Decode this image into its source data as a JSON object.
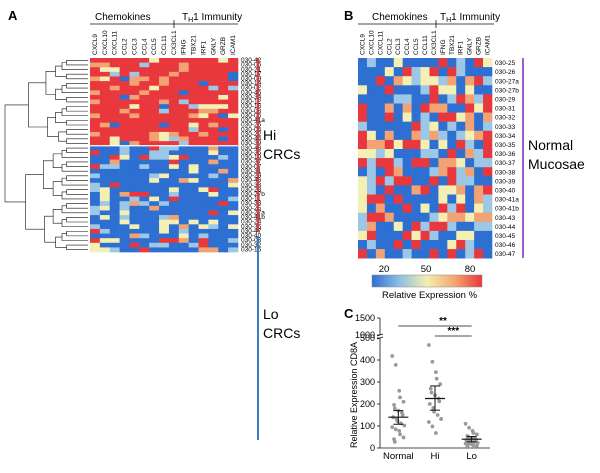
{
  "panel_a": {
    "label": "A",
    "chemokines_label": "Chemokines",
    "th1_label": "T",
    "th1_sub": "H",
    "th1_suffix": "1 Immunity",
    "genes": [
      "CXCL9",
      "CXCL10",
      "CXCL11",
      "CCL2",
      "CCL3",
      "CCL4",
      "CCL5",
      "CCL11",
      "CX3CL1",
      "IFNG",
      "TBX21",
      "IRF1",
      "GNLY",
      "GRZB",
      "ICAM1"
    ],
    "rows": [
      "030-42",
      "030-06",
      "030-21",
      "030-17",
      "030-09",
      "030-14",
      "030-02",
      "030-45",
      "030-34",
      "030-12",
      "030-16",
      "030-08",
      "030-05",
      "030-41a",
      "030-26",
      "030-04",
      "030-22",
      "030-44",
      "030-39",
      "030-43",
      "030-35",
      "030-19",
      "030-37",
      "030-07",
      "030-31",
      "030-29",
      "030-46",
      "030-33",
      "030-23",
      "030-27b",
      "030-11",
      "030-38",
      "030-25",
      "030-27a",
      "030-41b",
      "030-24",
      "030-36",
      "030-47",
      "030-40",
      "030-03",
      "030-32",
      "030-15"
    ],
    "hi_label_1": "Hi",
    "hi_label_2": "CRCs",
    "lo_label_1": "Lo",
    "lo_label_2": "CRCs",
    "hi_color": "#e8383d",
    "lo_color": "#3a7fc4"
  },
  "panel_b": {
    "label": "B",
    "chemokines_label": "Chemokines",
    "th1_label": "T",
    "th1_sub": "H",
    "th1_suffix": "1 Immunity",
    "genes": [
      "CXCL9",
      "CXCL10",
      "CXCL11",
      "CCL2",
      "CCL3",
      "CCL4",
      "CCL5",
      "CCL11",
      "CX3CL1",
      "IFNG",
      "TBX21",
      "IRF1",
      "GNLY",
      "GRZB",
      "ICAM1"
    ],
    "rows": [
      "030-25",
      "030-26",
      "030-27a",
      "030-27b",
      "030-29",
      "030-31",
      "030-32",
      "030-33",
      "030-34",
      "030-35",
      "030-36",
      "030-37",
      "030-38",
      "030-39",
      "030-40",
      "030-41a",
      "030-41b",
      "030-43",
      "030-44",
      "030-45",
      "030-46",
      "030-47"
    ],
    "group_label_1": "Normal",
    "group_label_2": "Mucosae",
    "group_color": "#9b5fd0"
  },
  "colorbar": {
    "ticks": [
      "20",
      "50",
      "80"
    ],
    "title": "Relative Expression %",
    "colors": [
      "#2e6fd2",
      "#8fbfe3",
      "#f3eeb0",
      "#f3a772",
      "#e8383d"
    ]
  },
  "heatmap_colors": {
    "red": "#e8383d",
    "orange": "#f2a273",
    "yellow": "#f4f0b4",
    "lightblue": "#9cc7e6",
    "blue": "#2e6fd2"
  },
  "panel_c": {
    "label": "C",
    "ylabel": "Relative Expression CD8A",
    "chart_data": {
      "type": "scatter",
      "categories": [
        "Normal",
        "Hi",
        "Lo"
      ],
      "ylim_lower": [
        0,
        500
      ],
      "ylim_upper": [
        1000,
        1500
      ],
      "yticks": [
        "0",
        "100",
        "200",
        "300",
        "400",
        "500",
        "1000",
        "1500"
      ],
      "series": [
        {
          "category": "Normal",
          "mean": 140,
          "sem_low": 108,
          "sem_high": 170,
          "values": [
            418,
            378,
            260,
            230,
            210,
            196,
            180,
            170,
            162,
            150,
            140,
            132,
            122,
            112,
            102,
            95,
            85,
            78,
            62,
            48,
            40,
            28
          ]
        },
        {
          "category": "Hi",
          "mean": 225,
          "sem_low": 172,
          "sem_high": 282,
          "values": [
            468,
            392,
            345,
            315,
            290,
            270,
            252,
            240,
            225,
            212,
            200,
            182,
            165,
            150,
            132,
            118,
            98,
            68
          ]
        },
        {
          "category": "Lo",
          "mean": 40,
          "sem_low": 28,
          "sem_high": 52,
          "values": [
            110,
            92,
            78,
            68,
            62,
            55,
            50,
            46,
            42,
            38,
            36,
            33,
            30,
            27,
            24,
            21,
            18,
            15,
            12,
            10,
            8
          ]
        }
      ],
      "significance": [
        {
          "from": "Normal",
          "to": "Lo",
          "label": "**"
        },
        {
          "from": "Hi",
          "to": "Lo",
          "label": "***"
        }
      ]
    }
  }
}
